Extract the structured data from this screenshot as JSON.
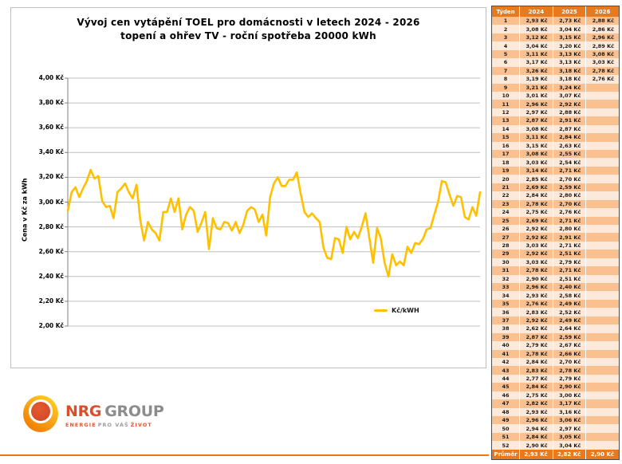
{
  "chart_panel": {
    "title_line1": "Vývoj cen vytápění TOEL pro domácnosti v letech 2024 - 2026",
    "title_line2": "topení a ohřev TV - roční spotřeba 20000 kWh",
    "ylabel": "Cena v Kč za kWh",
    "legend_label": "Kč/kWH"
  },
  "chart_data": {
    "type": "line",
    "title": "Vývoj cen vytápění TOEL pro domácnosti v letech 2024 - 2026",
    "subtitle": "topení a ohřev TV - roční spotřeba 20000 kWh",
    "ylabel": "Cena v Kč za kWh",
    "ylim": [
      2.0,
      4.0
    ],
    "ytick_values": [
      4.0,
      3.8,
      3.6,
      3.4,
      3.2,
      3.0,
      2.8,
      2.6,
      2.4,
      2.2,
      2.0
    ],
    "ytick_labels": [
      "4,00 Kč",
      "3,80 Kč",
      "3,60 Kč",
      "3,40 Kč",
      "3,20 Kč",
      "3,00 Kč",
      "2,80 Kč",
      "2,60 Kč",
      "2,40 Kč",
      "2,20 Kč",
      "2,00 Kč"
    ],
    "grid": true,
    "legend": {
      "label": "Kč/kWH",
      "position": "inside-bottom-right"
    },
    "line_color": "#FFC000",
    "x_unit": "týden (roky 2024–2026 za sebou)",
    "series": [
      {
        "name": "2024",
        "values": [
          2.93,
          3.08,
          3.12,
          3.04,
          3.11,
          3.17,
          3.26,
          3.19,
          3.21,
          3.01,
          2.96,
          2.97,
          2.87,
          3.08,
          3.11,
          3.15,
          3.08,
          3.03,
          3.14,
          2.85,
          2.69,
          2.84,
          2.78,
          2.75,
          2.69,
          2.92,
          2.92,
          3.03,
          2.92,
          3.03,
          2.78,
          2.9,
          2.96,
          2.93,
          2.76,
          2.83,
          2.92,
          2.62,
          2.87,
          2.79,
          2.78,
          2.84,
          2.83,
          2.77,
          2.84,
          2.75,
          2.82,
          2.93,
          2.96,
          2.94,
          2.84,
          2.9
        ]
      },
      {
        "name": "2025",
        "values": [
          2.73,
          3.04,
          3.15,
          3.2,
          3.13,
          3.13,
          3.18,
          3.18,
          3.24,
          3.07,
          2.92,
          2.88,
          2.91,
          2.87,
          2.84,
          2.63,
          2.55,
          2.54,
          2.71,
          2.7,
          2.59,
          2.8,
          2.7,
          2.76,
          2.71,
          2.8,
          2.91,
          2.71,
          2.51,
          2.79,
          2.71,
          2.51,
          2.4,
          2.58,
          2.49,
          2.52,
          2.49,
          2.64,
          2.59,
          2.67,
          2.66,
          2.7,
          2.78,
          2.79,
          2.9,
          3.0,
          3.17,
          3.16,
          3.06,
          2.97,
          3.05,
          3.04
        ]
      },
      {
        "name": "2026",
        "values": [
          2.88,
          2.86,
          2.96,
          2.89,
          3.08,
          3.03,
          2.78,
          2.76
        ]
      }
    ],
    "plotted_2026_points": 5
  },
  "table": {
    "headers": [
      "Týden",
      "2024",
      "2025",
      "2026"
    ],
    "weeks": 52,
    "footer_label": "Průměr",
    "footer_values": [
      "2,93 Kč",
      "2,82 Kč",
      "2,90 Kč"
    ],
    "value_suffix": " Kč"
  },
  "logo": {
    "brand_primary": "NRG",
    "brand_secondary": "GROUP",
    "tagline_word1": "ENERGIE",
    "tagline_word2": "PRO VÁŠ",
    "tagline_word3": "ŽIVOT"
  },
  "colors": {
    "line": "#FFC000",
    "grid": "#BFBFBF",
    "axis": "#808080",
    "table_header_bg": "#E8791D",
    "table_row_odd": "#FAC090",
    "table_row_even": "#FDE9D9",
    "bottom_rule": "#E87917",
    "logo_red": "#D94F2B",
    "logo_gray": "#8C8C8C"
  }
}
